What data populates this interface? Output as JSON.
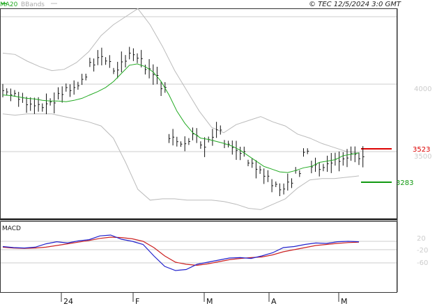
{
  "header": {
    "ma_legend": "MA20",
    "bb_legend": "BBands",
    "copyright": "© TEC 12/5/2024 3:0 GMT"
  },
  "macd_panel": {
    "title": "MACD"
  },
  "colors": {
    "ma20": "#22aa22",
    "bbands": "#bbbbbb",
    "price": "#111111",
    "resistance": "#dd0000",
    "support": "#119911",
    "macd_line": "#2222cc",
    "signal_line": "#cc2222",
    "grid": "#cccccc"
  },
  "chart_data": [
    {
      "type": "line",
      "title": "",
      "x_labels": [
        "24",
        "F",
        "M",
        "A",
        "M"
      ],
      "y_ticks": [
        "4000",
        "3500"
      ],
      "ylim": [
        2900,
        4600
      ],
      "levels": [
        {
          "label": "3523",
          "value": 3523,
          "color": "#dd0000"
        },
        {
          "label": "3283",
          "value": 3283,
          "color": "#119911"
        }
      ],
      "series": [
        {
          "name": "MA20",
          "values": [
            3920,
            3915,
            3905,
            3895,
            3890,
            3880,
            3875,
            3875,
            3870,
            3880,
            3895,
            3920,
            3945,
            3975,
            4020,
            4080,
            4140,
            4150,
            4130,
            4090,
            4020,
            3920,
            3800,
            3710,
            3640,
            3600,
            3590,
            3575,
            3560,
            3540,
            3510,
            3470,
            3430,
            3390,
            3370,
            3350,
            3345,
            3360,
            3380,
            3390,
            3420,
            3430,
            3440,
            3470,
            3480,
            3490
          ]
        },
        {
          "name": "price",
          "values": [
            3950,
            3920,
            3890,
            3860,
            3850,
            3840,
            3870,
            3930,
            3960,
            3980,
            4040,
            4150,
            4200,
            4180,
            4100,
            4170,
            4220,
            4200,
            4100,
            4060,
            3980,
            3600,
            3560,
            3560,
            3620,
            3540,
            3600,
            3650,
            3570,
            3520,
            3500,
            3420,
            3380,
            3330,
            3250,
            3210,
            3270,
            3350,
            3500,
            3390,
            3370,
            3410,
            3430,
            3440,
            3470,
            3460
          ]
        },
        {
          "name": "BBands upper",
          "values": [
            4230,
            4220,
            4170,
            4130,
            4100,
            4110,
            4160,
            4240,
            4360,
            4440,
            4500,
            4560,
            4440,
            4280,
            4100,
            3950,
            3800,
            3680,
            3640,
            3700,
            3730,
            3760,
            3720,
            3690,
            3630,
            3600,
            3560,
            3530,
            3500,
            3490
          ]
        },
        {
          "name": "BBands lower",
          "values": [
            3780,
            3770,
            3780,
            3780,
            3780,
            3760,
            3740,
            3720,
            3690,
            3600,
            3420,
            3220,
            3140,
            3150,
            3150,
            3140,
            3140,
            3140,
            3130,
            3110,
            3080,
            3070,
            3110,
            3150,
            3230,
            3290,
            3300,
            3300,
            3310,
            3320
          ]
        }
      ]
    },
    {
      "type": "line",
      "title": "MACD",
      "y_ticks": [
        "20",
        "-20",
        "-60"
      ],
      "series": [
        {
          "name": "MACD",
          "values": [
            -5,
            -10,
            -12,
            -8,
            8,
            18,
            12,
            22,
            28,
            46,
            50,
            30,
            20,
            5,
            -50,
            -100,
            -120,
            -115,
            -90,
            -80,
            -70,
            -60,
            -58,
            -62,
            -50,
            -35,
            -10,
            -5,
            5,
            12,
            10,
            18,
            20,
            18
          ]
        },
        {
          "name": "Signal",
          "values": [
            -8,
            -12,
            -14,
            -12,
            -8,
            0,
            8,
            16,
            24,
            34,
            40,
            38,
            32,
            20,
            -10,
            -50,
            -80,
            -90,
            -95,
            -88,
            -78,
            -68,
            -62,
            -58,
            -55,
            -45,
            -30,
            -20,
            -10,
            0,
            5,
            10,
            14,
            16
          ]
        }
      ]
    }
  ]
}
